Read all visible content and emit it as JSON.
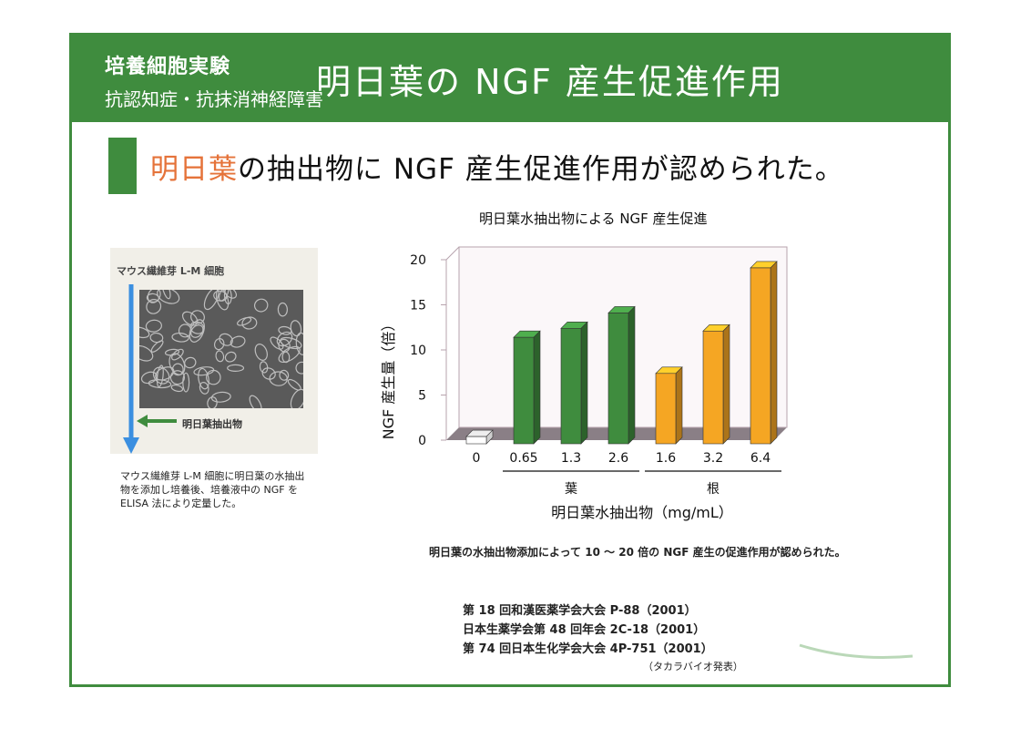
{
  "header": {
    "subtitle_line1": "培養細胞実験",
    "subtitle_line2": "抗認知症・抗抹消神経障害",
    "title": "明日葉の NGF 産生促進作用"
  },
  "headline": {
    "accent": "明日葉",
    "rest": "の抽出物に NGF 産生促進作用が認められた。"
  },
  "photo": {
    "label": "マウス繊維芽 L-M 細胞",
    "arrow_label": "明日葉抽出物",
    "caption": "マウス繊維芽 L-M 細胞に明日葉の水抽出物を添加し培養後、培養液中の NGF を ELISA 法により定量した。"
  },
  "colors": {
    "header_green": "#3f8c3e",
    "accent_orange": "#e5733a",
    "bar_control": "#ffffff",
    "bar_leaf": "#3f8c3e",
    "bar_root": "#f5a623",
    "arrow_blue": "#3b8fe0"
  },
  "chart_data": {
    "type": "bar",
    "title": "明日葉水抽出物による NGF 産生促進",
    "xlabel": "明日葉水抽出物（mg/mL）",
    "ylabel": "NGF 産生量（倍）",
    "ylim": [
      0,
      20
    ],
    "yticks": [
      0,
      5,
      10,
      15,
      20
    ],
    "categories": [
      "0",
      "0.65",
      "1.3",
      "2.6",
      "1.6",
      "3.2",
      "6.4"
    ],
    "values": [
      1,
      12,
      13,
      14.7,
      8,
      12.7,
      19.7
    ],
    "bar_groups": [
      "control",
      "leaf",
      "leaf",
      "leaf",
      "root",
      "root",
      "root"
    ],
    "group_labels": [
      {
        "label": "葉"
      },
      {
        "label": "根"
      }
    ],
    "grid": false
  },
  "summary": "明日葉の水抽出物添加によって 10 ～ 20 倍の NGF 産生の促進作用が認められた。",
  "references": [
    "第 18 回和漢医薬学会大会 P-88（2001）",
    "日本生薬学会第 48 回年会 2C-18（2001）",
    "第 74 回日本生化学会大会 4P-751（2001）"
  ],
  "note": "（タカラバイオ発表）"
}
